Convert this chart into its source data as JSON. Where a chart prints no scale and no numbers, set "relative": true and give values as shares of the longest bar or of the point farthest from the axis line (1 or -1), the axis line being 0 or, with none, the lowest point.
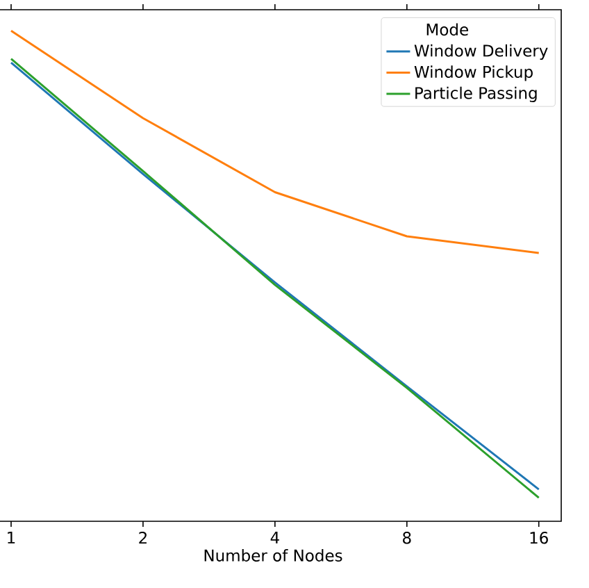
{
  "chart_data": {
    "type": "line",
    "relative": true,
    "xlabel": "Number of Nodes",
    "legend_title": "Mode",
    "legend": "top right",
    "categories": [
      "1",
      "2",
      "4",
      "8",
      "16"
    ],
    "series": [
      {
        "name": "Window Delivery",
        "color": "#1f77b4",
        "values": [
          0.935,
          0.708,
          0.487,
          0.275,
          0.065
        ]
      },
      {
        "name": "Window Pickup",
        "color": "#ff7f0e",
        "values": [
          1,
          0.822,
          0.671,
          0.581,
          0.547
        ]
      },
      {
        "name": "Particle Passing",
        "color": "#2ca02c",
        "values": [
          0.943,
          0.714,
          0.482,
          0.272,
          0.048
        ]
      }
    ]
  }
}
